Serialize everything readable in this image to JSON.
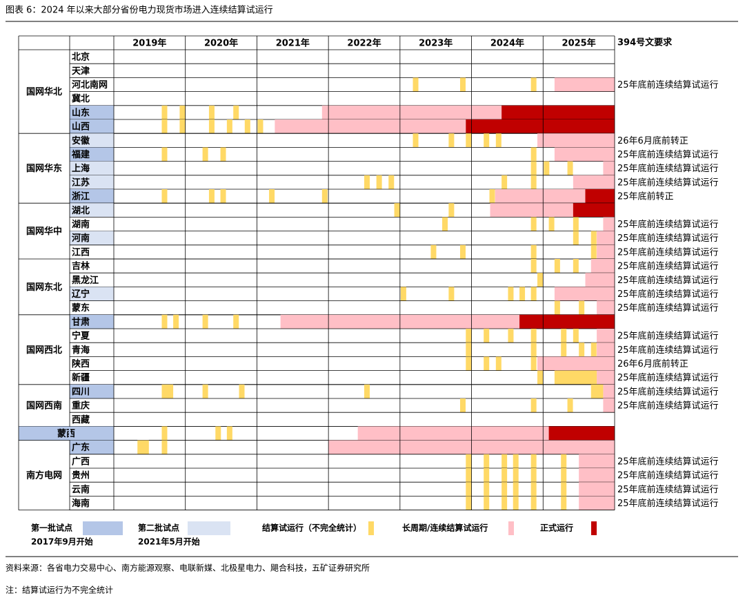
{
  "chart_data": {
    "type": "gantt",
    "title": "图表 6：2024 年以来大部分省份电力现货市场进入连续结算试运行",
    "categories": [
      "2019年",
      "2020年",
      "2021年",
      "2022年",
      "2023年",
      "2024年",
      "2025年"
    ],
    "xlim": [
      2019,
      2026
    ],
    "xticks": [
      2019,
      2020,
      2021,
      2022,
      2023,
      2024,
      2025,
      2026
    ],
    "note_header": "394号文要求",
    "legend": [
      {
        "label": "第一批试点",
        "sub": "2017年9月开始",
        "color": "#b4c6e7"
      },
      {
        "label": "第二批试点",
        "sub": "2021年5月开始",
        "color": "#dae3f3"
      },
      {
        "label": "结算试运行（不完全统计）",
        "color": "#ffd966"
      },
      {
        "label": "长周期/连续结算试运行",
        "color": "#ffbfc6"
      },
      {
        "label": "正式运行",
        "color": "#c00000"
      }
    ],
    "groups": [
      {
        "name": "国网华北",
        "rows": [
          {
            "name": "北京"
          },
          {
            "name": "天津"
          },
          {
            "name": "河北南网",
            "trials": [
              2023.18,
              2023.84,
              2024.83
            ],
            "long": [
              2025.16,
              2026
            ],
            "note": "25年底前连续结算试运行"
          },
          {
            "name": "冀北"
          },
          {
            "name": "山东",
            "batch": 1,
            "trials": [
              2019.67,
              2019.92,
              2020.33,
              2020.67
            ],
            "long": [
              2021.91,
              2024.42
            ],
            "formal": [
              2024.42,
              2026
            ]
          },
          {
            "name": "山西",
            "batch": 1,
            "trials": [
              2019.67,
              2019.92,
              2020.33,
              2020.58,
              2020.83,
              2021.01
            ],
            "long": [
              2021.25,
              2023.92
            ],
            "formal": [
              2023.92,
              2026
            ]
          }
        ]
      },
      {
        "name": "国网华东",
        "rows": [
          {
            "name": "安徽",
            "batch": 2,
            "trials": [
              2023.18,
              2023.68,
              2023.92,
              2024.17,
              2024.34
            ],
            "long": [
              2024.92,
              2026
            ],
            "note": "26年6月底前转正"
          },
          {
            "name": "福建",
            "batch": 1,
            "trials": [
              2019.67,
              2020.24,
              2020.49,
              2024.83
            ],
            "long": [
              2025.16,
              2026
            ],
            "note": "25年底前连续结算试运行"
          },
          {
            "name": "上海",
            "batch": 2,
            "trials": [
              2024.83,
              2025.01,
              2025.34
            ],
            "long": [
              2025.84,
              2026
            ],
            "note": "25年底前连续结算试运行"
          },
          {
            "name": "江苏",
            "batch": 2,
            "trials": [
              2022.5,
              2022.67,
              2022.84,
              2024.42,
              2024.83
            ],
            "long": [
              2025.42,
              2026
            ],
            "note": "25年底前连续结算试运行"
          },
          {
            "name": "浙江",
            "batch": 1,
            "trials": [
              2019.67,
              2020.33,
              2020.49,
              2021.17,
              2021.91,
              2024.25
            ],
            "long": [
              2024.33,
              2025.59
            ],
            "formal": [
              2025.59,
              2026
            ],
            "note": "25年底前转正"
          }
        ]
      },
      {
        "name": "国网华中",
        "rows": [
          {
            "name": "湖北",
            "batch": 2,
            "trials": [
              2022.92,
              2023.68
            ],
            "long": [
              2024.26,
              2025.42
            ],
            "formal": [
              2025.42,
              2026
            ]
          },
          {
            "name": "湖南",
            "trials": [
              2023.59,
              2024.83,
              2025.08,
              2025.42
            ],
            "long": [
              2025.84,
              2026
            ],
            "note": "25年底前连续结算试运行"
          },
          {
            "name": "河南",
            "batch": 2,
            "trials": [
              2025.42,
              2025.67
            ],
            "long": [
              2025.75,
              2026
            ],
            "note": "25年底前连续结算试运行"
          },
          {
            "name": "江西",
            "trials": [
              2023.43,
              2023.84,
              2024.83,
              2025.67
            ],
            "long": [
              2025.75,
              2026
            ],
            "note": "25年底前连续结算试运行"
          }
        ]
      },
      {
        "name": "国网东北",
        "rows": [
          {
            "name": "吉林",
            "trials": [
              2024.83,
              2025.16,
              2025.42
            ],
            "long": [
              2025.67,
              2026
            ],
            "note": "25年底前连续结算试运行"
          },
          {
            "name": "黑龙江",
            "trials": [
              2024.92
            ],
            "long": [
              2025.59,
              2026
            ],
            "note": "25年底前连续结算试运行"
          },
          {
            "name": "辽宁",
            "batch": 2,
            "trials": [
              2023.01,
              2023.68,
              2024.51,
              2024.67,
              2024.83
            ],
            "long": [
              2025.16,
              2026
            ],
            "note": "25年底前连续结算试运行"
          },
          {
            "name": "蒙东",
            "trials": [
              2025.16,
              2025.5
            ],
            "long": [
              2025.75,
              2026
            ],
            "note": "25年底前连续结算试运行"
          }
        ]
      },
      {
        "name": "国网西北",
        "rows": [
          {
            "name": "甘肃",
            "batch": 1,
            "trials": [
              2019.67,
              2019.83,
              2020.24,
              2020.67
            ],
            "long": [
              2021.33,
              2024.67
            ],
            "formal": [
              2024.67,
              2026
            ]
          },
          {
            "name": "宁夏",
            "trials": [
              2023.92,
              2024.17,
              2024.51,
              2024.83,
              2025.25,
              2025.42
            ],
            "long": [
              2025.75,
              2026
            ],
            "note": "25年底前连续结算试运行"
          },
          {
            "name": "青海",
            "trials": [
              2023.92,
              2024.83,
              2025.25,
              2025.5,
              2025.67
            ],
            "long": [
              2025.75,
              2026
            ],
            "note": "25年底前连续结算试运行"
          },
          {
            "name": "陕西",
            "trials": [
              2023.92,
              2024.17,
              2024.34,
              2024.83
            ],
            "long": [
              2024.92,
              2026
            ],
            "note": "26年6月底前转正"
          },
          {
            "name": "新疆",
            "trials": [
              2024.92,
              [
                2025.16,
                2025.75
              ]
            ],
            "long": [
              2025.75,
              2026
            ],
            "note": "25年底前连续结算试运行"
          }
        ]
      },
      {
        "name": "国网西南",
        "rows": [
          {
            "name": "四川",
            "batch": 1,
            "trials": [
              [
                2019.67,
                2019.83
              ],
              2020.24,
              2020.75,
              2022.5,
              [
                2025.67,
                2025.84
              ]
            ],
            "long": [
              2025.84,
              2026
            ],
            "note": "25年底前连续结算试运行"
          },
          {
            "name": "重庆",
            "trials": [
              2023.84,
              2024.83,
              2025.34
            ],
            "long": [
              2025.84,
              2026
            ],
            "note": "25年底前连续结算试运行"
          },
          {
            "name": "西藏"
          }
        ]
      },
      {
        "rows": [
          {
            "name": "蒙西",
            "batch": 1,
            "trials": [
              2019.67,
              2020.42,
              2020.58
            ],
            "long": [
              2022.41,
              2025.08
            ],
            "formal": [
              2025.08,
              2026
            ]
          }
        ]
      },
      {
        "name": "南方电网",
        "rows": [
          {
            "name": "广东",
            "batch": 1,
            "trials": [
              [
                2019.33,
                2019.49
              ],
              2019.67
            ],
            "long": [
              2022.0,
              2026
            ]
          },
          {
            "name": "广西",
            "trials": [
              2023.92,
              2024.17,
              2024.42,
              2024.58,
              2024.83,
              2025.25
            ],
            "long": [
              2025.5,
              2026
            ],
            "note": "25年底前连续结算试运行"
          },
          {
            "name": "贵州",
            "trials": [
              2023.92,
              2024.17,
              2024.42,
              2024.58,
              2024.83,
              2025.25
            ],
            "long": [
              2025.5,
              2026
            ],
            "note": "25年底前连续结算试运行"
          },
          {
            "name": "云南",
            "trials": [
              2023.92,
              2024.17,
              2024.42,
              2024.58,
              2024.83,
              2025.25
            ],
            "long": [
              2025.5,
              2026
            ],
            "note": "25年底前连续结算试运行"
          },
          {
            "name": "海南",
            "trials": [
              2023.92,
              2024.17,
              2024.42,
              2024.58,
              2024.83,
              2025.25
            ],
            "long": [
              2025.5,
              2026
            ],
            "note": "25年底前连续结算试运行"
          }
        ]
      }
    ],
    "source": "资料来源：各省电力交易中心、南方能源观察、电联新媒、北极星电力、飓合科技，五矿证券研究所",
    "footnote": "注：结算试运行为不完全统计"
  }
}
